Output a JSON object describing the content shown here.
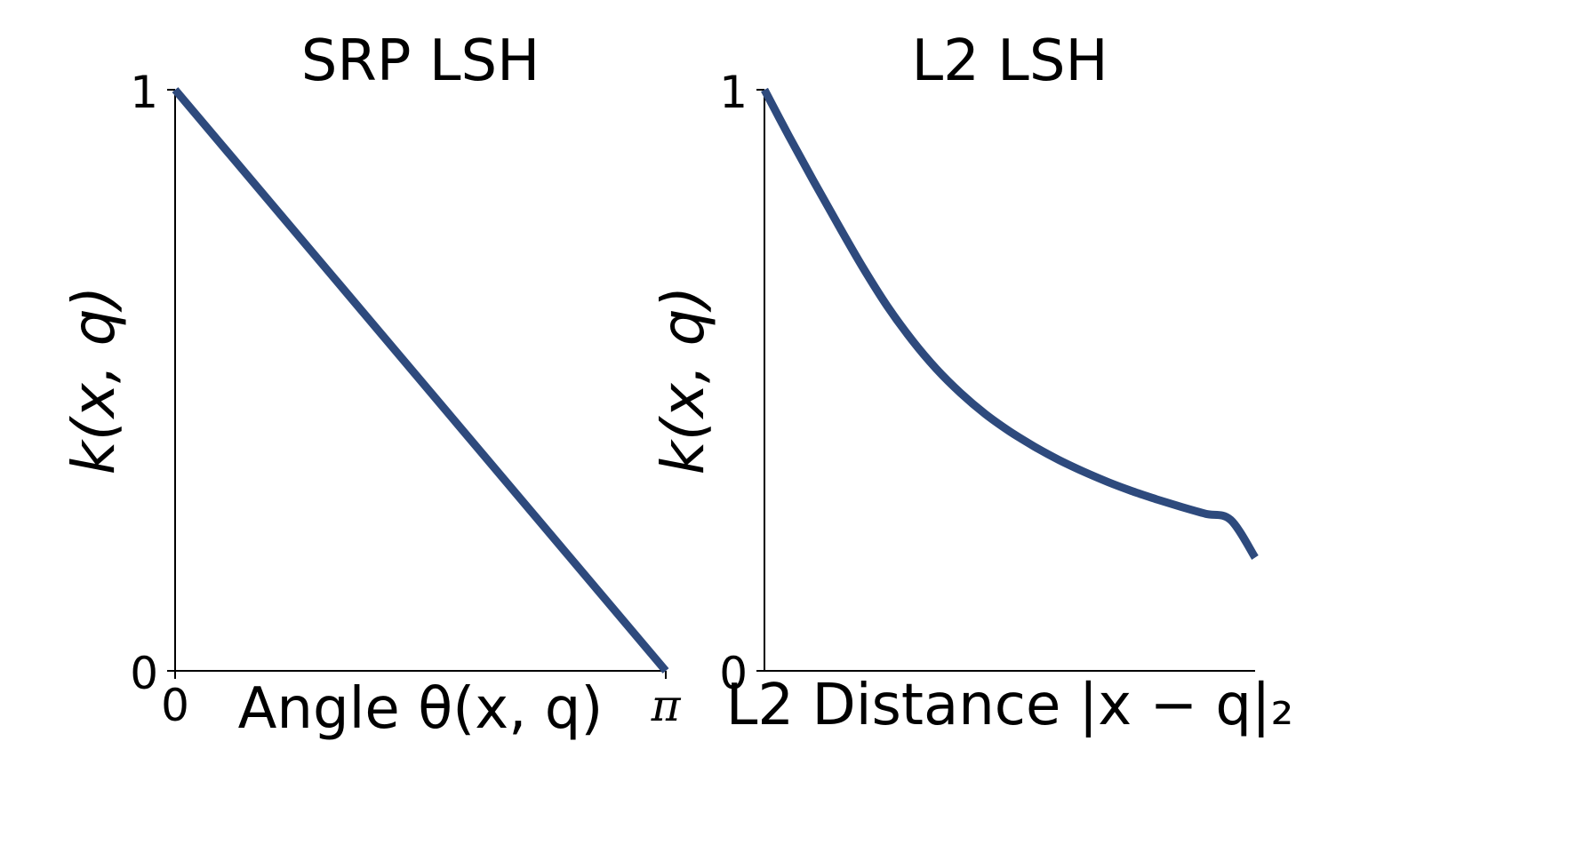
{
  "colors": {
    "line": "#2e4a7d",
    "axis": "#000000",
    "background": "#ffffff"
  },
  "chart_data": [
    {
      "type": "line",
      "title": "SRP LSH",
      "xlabel": "Angle θ(x, q)",
      "ylabel": "k(x, q)",
      "xlim": [
        0,
        3.14159
      ],
      "ylim": [
        0,
        1
      ],
      "xticks": [
        {
          "value": 0,
          "label": "0"
        },
        {
          "value": 3.14159,
          "label": "π"
        }
      ],
      "yticks": [
        {
          "value": 0,
          "label": "0"
        },
        {
          "value": 1,
          "label": "1"
        }
      ],
      "grid": false,
      "series": [
        {
          "x": [
            0,
            3.14159
          ],
          "y": [
            1,
            0
          ]
        }
      ]
    },
    {
      "type": "line",
      "title": "L2 LSH",
      "xlabel": "L2 Distance |x − q|₂",
      "ylabel": "k(x, q)",
      "xlim": [
        0,
        10
      ],
      "ylim": [
        0,
        1
      ],
      "xticks": [],
      "yticks": [
        {
          "value": 0,
          "label": "0"
        },
        {
          "value": 1,
          "label": "1"
        }
      ],
      "grid": false,
      "series": [
        {
          "x": [
            0,
            0.5,
            1,
            1.5,
            2,
            2.5,
            3,
            3.5,
            4,
            4.5,
            5,
            5.5,
            6,
            6.5,
            7,
            7.5,
            8,
            8.5,
            9,
            9.5,
            10
          ],
          "y": [
            1,
            0.92,
            0.843,
            0.768,
            0.695,
            0.628,
            0.57,
            0.52,
            0.478,
            0.442,
            0.412,
            0.386,
            0.363,
            0.343,
            0.325,
            0.309,
            0.295,
            0.282,
            0.27,
            0.26,
            0.195
          ]
        }
      ]
    }
  ]
}
